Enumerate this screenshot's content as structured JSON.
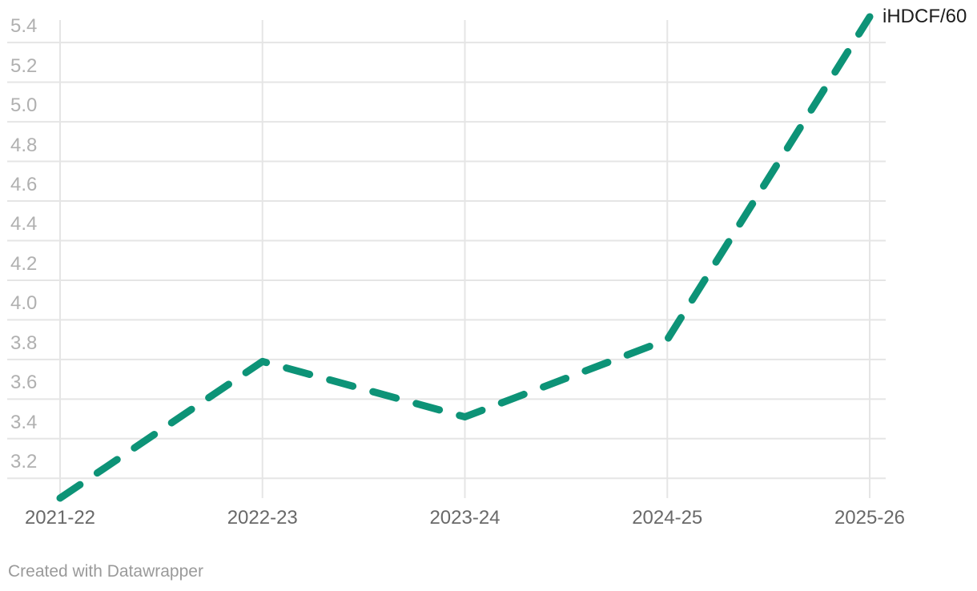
{
  "chart": {
    "legend_label": "iHDCF/60",
    "attribution": "Created with Datawrapper",
    "line_color": "#0d9377",
    "grid_color": "#e5e5e5",
    "y_label_color": "#b0b0b0",
    "x_label_color": "#696969"
  },
  "chart_data": {
    "type": "line",
    "title": "",
    "xlabel": "",
    "ylabel": "",
    "categories": [
      "2021-22",
      "2022-23",
      "2023-24",
      "2024-25",
      "2025-26"
    ],
    "series": [
      {
        "name": "iHDCF/60",
        "values": [
          3.1,
          3.79,
          3.51,
          3.9,
          5.53
        ],
        "style": "dashed",
        "color": "#0d9377"
      }
    ],
    "y_ticks": [
      3.2,
      3.4,
      3.6,
      3.8,
      4.0,
      4.2,
      4.4,
      4.6,
      4.8,
      5.0,
      5.2,
      5.4
    ],
    "ylim": [
      3.1,
      5.53
    ],
    "grid": true,
    "legend_position": "end-of-line",
    "annotations": []
  }
}
